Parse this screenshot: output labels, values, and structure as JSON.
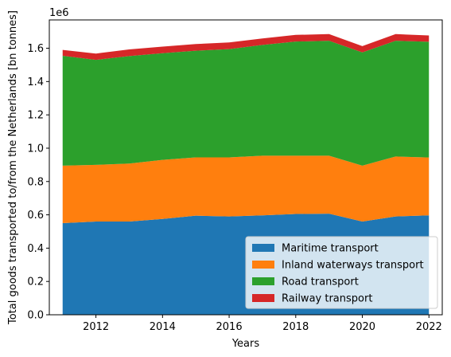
{
  "chart_data": {
    "type": "area",
    "stacked": true,
    "title": "",
    "xlabel": "Years",
    "ylabel": "Total goods transported to/from the Netherlands [bn tonnes]",
    "y_offset_label": "1e6",
    "x": [
      2011,
      2012,
      2013,
      2014,
      2015,
      2016,
      2017,
      2018,
      2019,
      2020,
      2021,
      2022
    ],
    "xlim": [
      2010.6,
      2022.4
    ],
    "ylim": [
      0,
      1770000
    ],
    "x_ticks": [
      2012,
      2014,
      2016,
      2018,
      2020,
      2022
    ],
    "x_tick_labels": [
      "2012",
      "2014",
      "2016",
      "2018",
      "2020",
      "2022"
    ],
    "y_ticks": [
      0,
      200000,
      400000,
      600000,
      800000,
      1000000,
      1200000,
      1400000,
      1600000
    ],
    "y_tick_labels": [
      "0.0",
      "0.2",
      "0.4",
      "0.6",
      "0.8",
      "1.0",
      "1.2",
      "1.4",
      "1.6"
    ],
    "grid": false,
    "legend_position": "lower-right",
    "series": [
      {
        "name": "Maritime transport",
        "color": "#1f77b4",
        "values": [
          550000,
          560000,
          560000,
          575000,
          595000,
          590000,
          597000,
          605000,
          607000,
          560000,
          590000,
          597000
        ]
      },
      {
        "name": "Inland waterways transport",
        "color": "#ff7f0e",
        "values": [
          345000,
          340000,
          348000,
          355000,
          350000,
          355000,
          358000,
          350000,
          348000,
          335000,
          360000,
          347000
        ]
      },
      {
        "name": "Road transport",
        "color": "#2ca02c",
        "values": [
          660000,
          630000,
          645000,
          640000,
          640000,
          650000,
          665000,
          685000,
          690000,
          680000,
          695000,
          695000
        ]
      },
      {
        "name": "Railway transport",
        "color": "#d62728",
        "values": [
          35000,
          38000,
          40000,
          40000,
          40000,
          40000,
          39000,
          40000,
          40000,
          38000,
          40000,
          38000
        ]
      }
    ]
  }
}
